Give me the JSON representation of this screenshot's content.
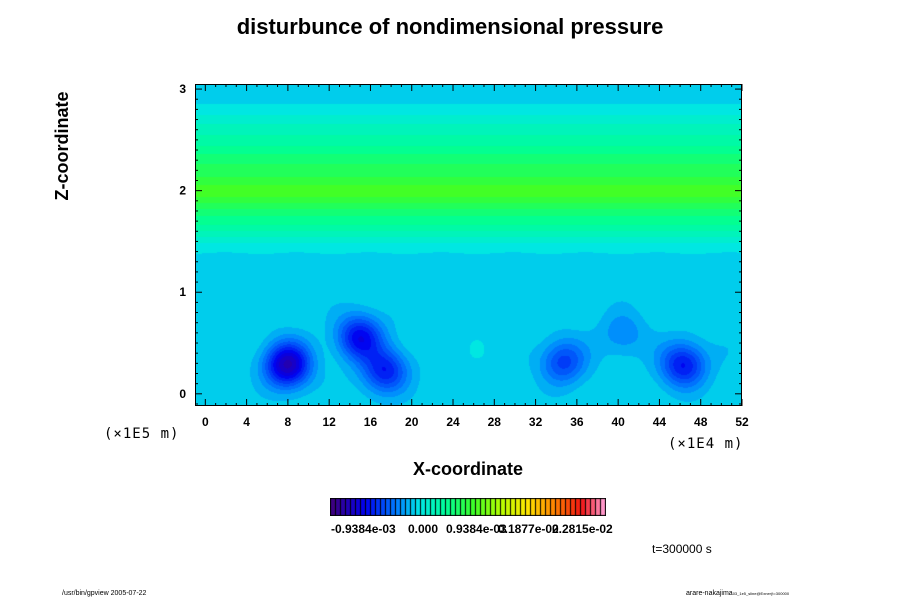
{
  "chart_data": {
    "type": "heatmap",
    "title": "disturbunce of nondimensional pressure",
    "xlabel": "X-coordinate",
    "ylabel": "Z-coordinate",
    "x_unit": "(×1E4 m)",
    "y_unit": "(×1E5 m)",
    "xlim": [
      -1,
      52
    ],
    "ylim": [
      -0.12,
      3.05
    ],
    "xticks": [
      "0",
      "4",
      "8",
      "12",
      "16",
      "20",
      "24",
      "28",
      "32",
      "36",
      "40",
      "44",
      "48",
      "52"
    ],
    "yticks": [
      "0",
      "1",
      "2",
      "3"
    ],
    "colorbar": {
      "labels": [
        "-0.9384e-03",
        "0.000",
        "0.9384e-03",
        "0.1877e-02",
        "0.2815e-02"
      ],
      "range": [
        -0.0014,
        0.0033
      ]
    },
    "bands": [
      {
        "z_center": 2.0,
        "value": 0.00092
      },
      {
        "z_center": 2.3,
        "value": 0.0006
      },
      {
        "z_center": 1.7,
        "value": 0.00045
      },
      {
        "z_center": 2.6,
        "value": 0.0003
      }
    ],
    "minima": [
      {
        "x": 7.8,
        "z": 0.3,
        "value": -0.00115
      },
      {
        "x": 14.8,
        "z": 0.57,
        "value": -0.00085
      },
      {
        "x": 17.3,
        "z": 0.24,
        "value": -0.00075
      },
      {
        "x": 34.5,
        "z": 0.33,
        "value": -0.0006
      },
      {
        "x": 46.2,
        "z": 0.3,
        "value": -0.0008
      },
      {
        "x": 40.3,
        "z": 0.6,
        "value": -0.0003
      }
    ],
    "annotations": [
      "t=300000 s"
    ]
  },
  "footer": {
    "left": "/usr/bin/gpview 2005-07-22",
    "right": "arare-nakajima",
    "right_small": "03_1e5_sline@Exner(t=300000"
  }
}
